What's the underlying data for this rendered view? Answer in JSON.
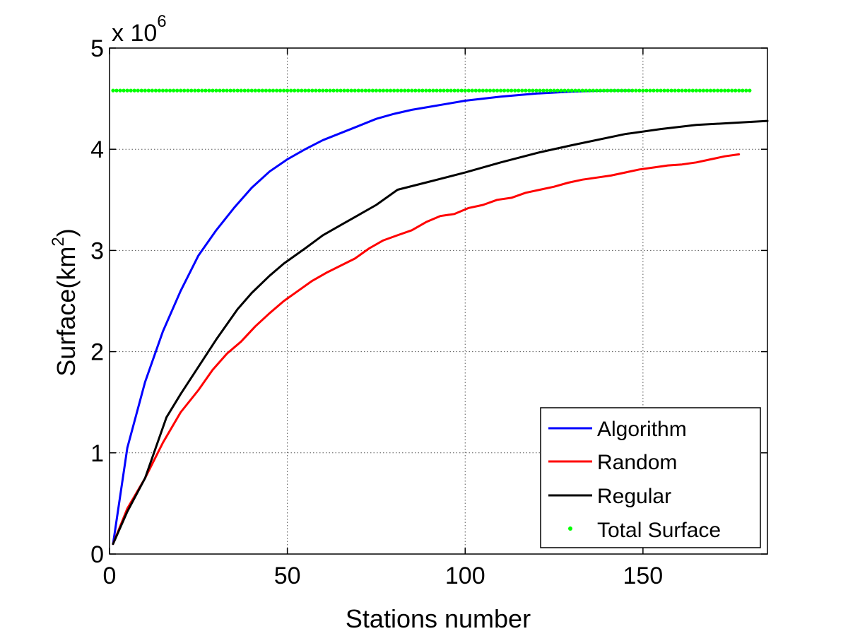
{
  "chart_data": {
    "type": "line",
    "title": "",
    "xlabel": "Stations number",
    "ylabel_main": "Surface(km",
    "ylabel_sup": "2",
    "ylabel_close": ")",
    "y_multiplier_base": "x 10",
    "y_multiplier_exp": "6",
    "xlim": [
      0,
      185
    ],
    "ylim": [
      0,
      5
    ],
    "xticks": [
      0,
      50,
      100,
      150
    ],
    "yticks": [
      0,
      1,
      2,
      3,
      4,
      5
    ],
    "grid": true,
    "legend_position": "bottom-right",
    "series": [
      {
        "name": "Algorithm",
        "color": "#0000ff",
        "style": "line",
        "x": [
          1,
          5,
          10,
          15,
          20,
          25,
          30,
          35,
          40,
          45,
          50,
          55,
          60,
          65,
          70,
          75,
          80,
          85,
          90,
          95,
          100,
          110,
          120,
          130,
          140,
          147
        ],
        "y": [
          0.1,
          1.05,
          1.7,
          2.2,
          2.6,
          2.95,
          3.2,
          3.42,
          3.62,
          3.78,
          3.9,
          4.0,
          4.09,
          4.16,
          4.23,
          4.3,
          4.35,
          4.39,
          4.42,
          4.45,
          4.48,
          4.52,
          4.55,
          4.57,
          4.58,
          4.58
        ]
      },
      {
        "name": "Random",
        "color": "#ff0000",
        "style": "line",
        "x": [
          1,
          5,
          10,
          15,
          20,
          25,
          29,
          33,
          37,
          41,
          45,
          49,
          53,
          57,
          61,
          65,
          69,
          73,
          77,
          81,
          85,
          89,
          93,
          97,
          101,
          105,
          109,
          113,
          117,
          121,
          125,
          129,
          133,
          137,
          141,
          145,
          149,
          153,
          157,
          161,
          165,
          169,
          173,
          177
        ],
        "y": [
          0.1,
          0.45,
          0.75,
          1.1,
          1.4,
          1.62,
          1.82,
          1.98,
          2.1,
          2.25,
          2.38,
          2.5,
          2.6,
          2.7,
          2.78,
          2.85,
          2.92,
          3.02,
          3.1,
          3.15,
          3.2,
          3.28,
          3.34,
          3.36,
          3.42,
          3.45,
          3.5,
          3.52,
          3.57,
          3.6,
          3.63,
          3.67,
          3.7,
          3.72,
          3.74,
          3.77,
          3.8,
          3.82,
          3.84,
          3.85,
          3.87,
          3.9,
          3.93,
          3.95
        ]
      },
      {
        "name": "Regular",
        "color": "#000000",
        "style": "line",
        "x": [
          1,
          5,
          10,
          16,
          20,
          25,
          30,
          36,
          40,
          45,
          49,
          55,
          60,
          65,
          70,
          75,
          81,
          90,
          100,
          110,
          121,
          130,
          145,
          155,
          165,
          175,
          185
        ],
        "y": [
          0.1,
          0.42,
          0.75,
          1.35,
          1.58,
          1.85,
          2.12,
          2.42,
          2.58,
          2.75,
          2.87,
          3.02,
          3.15,
          3.25,
          3.35,
          3.45,
          3.6,
          3.68,
          3.77,
          3.87,
          3.97,
          4.04,
          4.15,
          4.2,
          4.24,
          4.26,
          4.28
        ]
      },
      {
        "name": "Total Surface",
        "color": "#00ff00",
        "style": "points",
        "x_start": 1,
        "x_end": 180,
        "x_step": 1,
        "y": 4.58
      }
    ]
  }
}
